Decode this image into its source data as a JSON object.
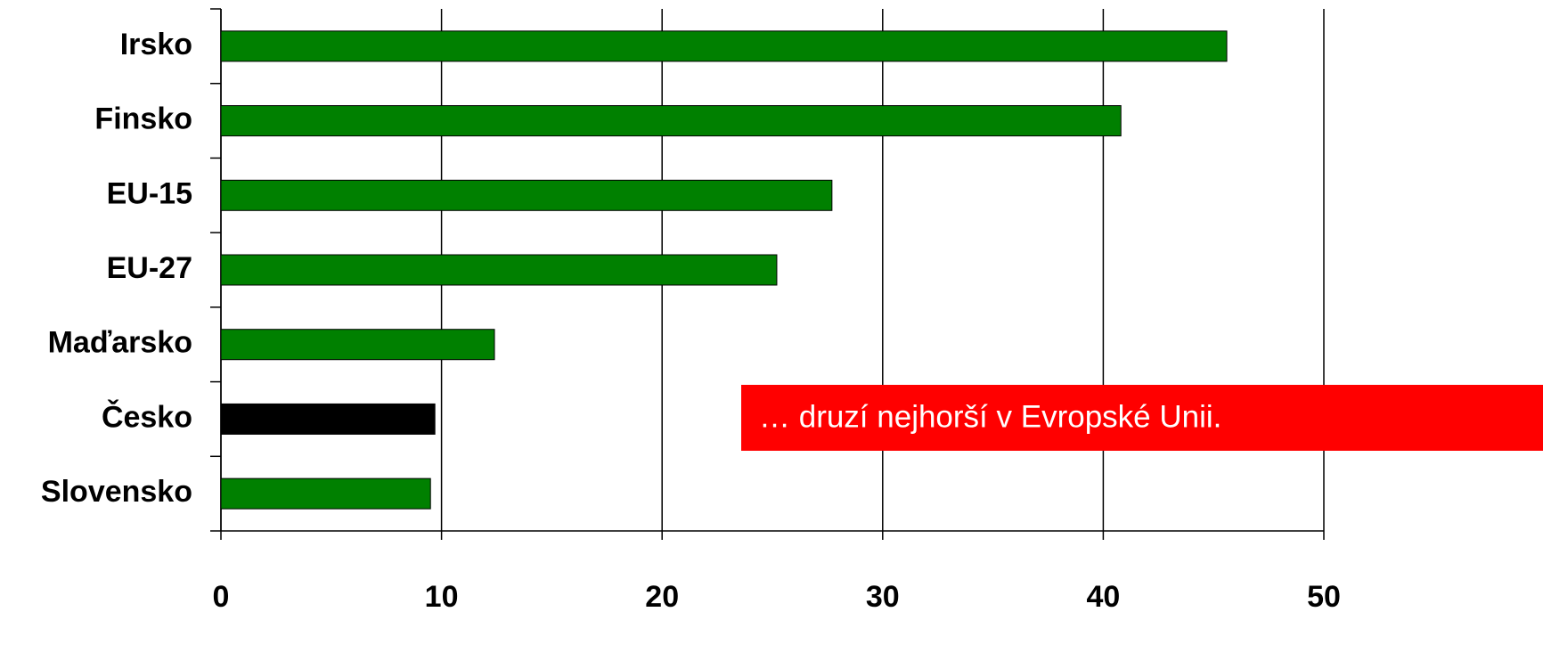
{
  "chart_data": {
    "type": "bar",
    "orientation": "horizontal",
    "categories": [
      "Irsko",
      "Finsko",
      "EU-15",
      "EU-27",
      "Maďarsko",
      "Česko",
      "Slovensko"
    ],
    "values": [
      45.6,
      40.8,
      27.7,
      25.2,
      12.4,
      9.7,
      9.5
    ],
    "colors": [
      "#008000",
      "#008000",
      "#008000",
      "#008000",
      "#008000",
      "#000000",
      "#008000"
    ],
    "xlim": [
      0,
      50
    ],
    "xticks": [
      0,
      10,
      20,
      30,
      40,
      50
    ],
    "grid": true,
    "annotation": "… druzí nejhorší v Evropské Unii."
  }
}
